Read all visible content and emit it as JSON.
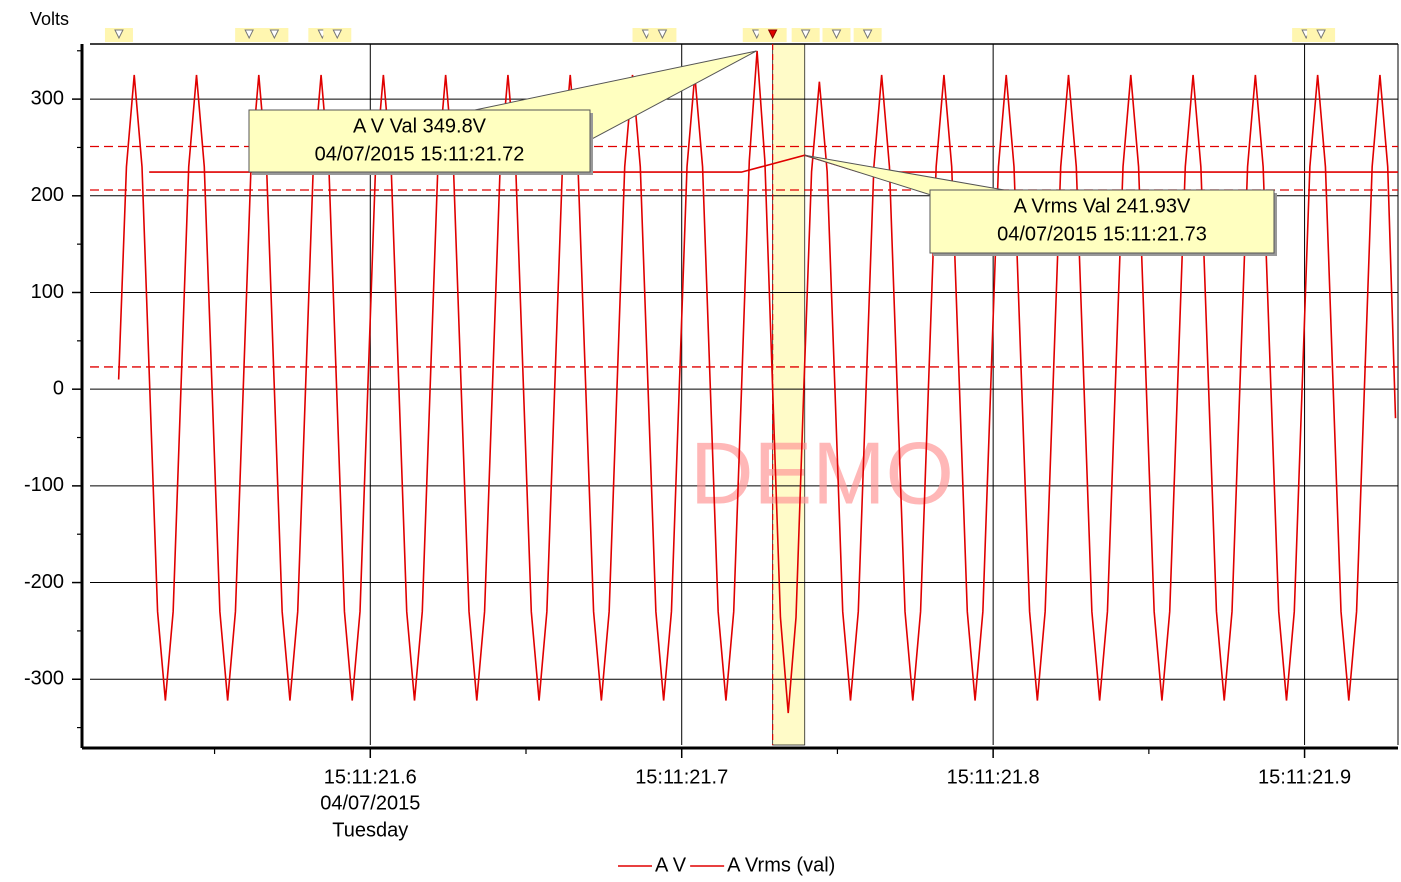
{
  "chart_data": {
    "type": "line",
    "y_axis_label": "Volts",
    "xlim": [
      21.51,
      21.93
    ],
    "ylim": [
      -368,
      357
    ],
    "xticks": [
      {
        "value": 21.6,
        "label": "15:11:21.6",
        "sublabels": [
          "04/07/2015",
          "Tuesday"
        ]
      },
      {
        "value": 21.7,
        "label": "15:11:21.7"
      },
      {
        "value": 21.8,
        "label": "15:11:21.8"
      },
      {
        "value": 21.9,
        "label": "15:11:21.9"
      }
    ],
    "xminorticks": [
      21.55,
      21.65,
      21.75,
      21.85
    ],
    "yticks": [
      -300,
      -200,
      -100,
      0,
      100,
      200,
      300
    ],
    "yminorticks": [
      -350,
      -250,
      -150,
      -50,
      50,
      150,
      250,
      350
    ],
    "grid": true,
    "reference_lines": [
      251,
      206,
      23
    ],
    "reference_color": "#e00000",
    "cursor": 21.7292,
    "highlight": [
      21.7292,
      21.7395
    ],
    "event_markers": [
      21.5193,
      21.5611,
      21.5692,
      21.5846,
      21.5894,
      21.6887,
      21.6938,
      21.7241,
      21.7292,
      21.7398,
      21.7497,
      21.7597,
      21.9005,
      21.9053
    ],
    "active_marker": 8,
    "watermark": "DEMO",
    "series": [
      {
        "name": "A V",
        "color": "#e00000",
        "x": [
          21.5192,
          21.5217,
          21.5242,
          21.5267,
          21.5292,
          21.5317,
          21.5342,
          21.5367,
          21.5392,
          21.5417,
          21.5442,
          21.5467,
          21.5492,
          21.5517,
          21.5542,
          21.5567,
          21.5592,
          21.5617,
          21.5642,
          21.5667,
          21.5692,
          21.5717,
          21.5742,
          21.5767,
          21.5792,
          21.5817,
          21.5842,
          21.5867,
          21.5892,
          21.5917,
          21.5942,
          21.5967,
          21.5992,
          21.6017,
          21.6042,
          21.6067,
          21.6092,
          21.6117,
          21.6142,
          21.6167,
          21.6192,
          21.6217,
          21.6242,
          21.6267,
          21.6292,
          21.6317,
          21.6342,
          21.6367,
          21.6392,
          21.6417,
          21.6442,
          21.6467,
          21.6492,
          21.6517,
          21.6542,
          21.6567,
          21.6592,
          21.6617,
          21.6642,
          21.6667,
          21.6692,
          21.6717,
          21.6742,
          21.6767,
          21.6792,
          21.6817,
          21.6842,
          21.6867,
          21.6892,
          21.6917,
          21.6942,
          21.6967,
          21.6992,
          21.7017,
          21.7042,
          21.7067,
          21.7092,
          21.7117,
          21.7142,
          21.7167,
          21.7192,
          21.7217,
          21.7242,
          21.7267,
          21.7292,
          21.7317,
          21.7342,
          21.7367,
          21.7392,
          21.7417,
          21.7442,
          21.7467,
          21.7492,
          21.7517,
          21.7542,
          21.7567,
          21.7592,
          21.7617,
          21.7642,
          21.7667,
          21.7692,
          21.7717,
          21.7742,
          21.7767,
          21.7792,
          21.7817,
          21.7842,
          21.7867,
          21.7892,
          21.7917,
          21.7942,
          21.7967,
          21.7992,
          21.8017,
          21.8042,
          21.8067,
          21.8092,
          21.8117,
          21.8142,
          21.8167,
          21.8192,
          21.8217,
          21.8242,
          21.8267,
          21.8292,
          21.8317,
          21.8342,
          21.8367,
          21.8392,
          21.8417,
          21.8442,
          21.8467,
          21.8492,
          21.8517,
          21.8542,
          21.8567,
          21.8592,
          21.8617,
          21.8642,
          21.8667,
          21.8692,
          21.8717,
          21.8742,
          21.8767,
          21.8792,
          21.8817,
          21.8842,
          21.8867,
          21.8892,
          21.8917,
          21.8942,
          21.8967,
          21.8992,
          21.9017,
          21.9042,
          21.9067,
          21.9092,
          21.9117,
          21.9142,
          21.9167,
          21.9192,
          21.9217,
          21.9242,
          21.9267,
          21.9292
        ],
        "values": [
          10,
          230,
          325,
          230,
          0,
          -230,
          -322,
          -230,
          0,
          230,
          325,
          230,
          0,
          -230,
          -322,
          -230,
          0,
          230,
          325,
          230,
          0,
          -230,
          -322,
          -230,
          0,
          230,
          325,
          230,
          0,
          -230,
          -322,
          -230,
          0,
          230,
          325,
          230,
          0,
          -230,
          -322,
          -230,
          0,
          230,
          325,
          230,
          0,
          -230,
          -322,
          -230,
          0,
          230,
          325,
          230,
          0,
          -230,
          -322,
          -230,
          0,
          230,
          325,
          230,
          0,
          -230,
          -322,
          -230,
          0,
          230,
          325,
          230,
          0,
          -230,
          -322,
          -230,
          0,
          230,
          325,
          230,
          0,
          -230,
          -322,
          -230,
          0,
          236,
          349.8,
          236,
          0,
          -236,
          -335,
          -236,
          0,
          225,
          318,
          225,
          0,
          -230,
          -322,
          -230,
          0,
          230,
          325,
          230,
          0,
          -230,
          -322,
          -230,
          0,
          230,
          325,
          230,
          0,
          -230,
          -322,
          -230,
          0,
          230,
          325,
          230,
          0,
          -230,
          -322,
          -230,
          0,
          230,
          325,
          230,
          0,
          -230,
          -322,
          -230,
          0,
          230,
          325,
          230,
          0,
          -230,
          -322,
          -230,
          0,
          230,
          325,
          230,
          0,
          -230,
          -322,
          -230,
          0,
          230,
          325,
          230,
          0,
          -230,
          -322,
          -230,
          0,
          230,
          325,
          230,
          0,
          -230,
          -322,
          -230,
          0,
          230,
          325,
          230,
          -30
        ]
      },
      {
        "name": "A Vrms (val)",
        "color": "#e00000",
        "x": [
          21.529,
          21.7192,
          21.7395,
          21.7571,
          21.93
        ],
        "values": [
          224.5,
          224.5,
          241.93,
          224.5,
          224.5
        ]
      }
    ],
    "annotations": [
      {
        "lines": [
          "A V Val 349.8V",
          "04/07/2015 15:11:21.72"
        ],
        "x": 21.724,
        "y": 349.8
      },
      {
        "lines": [
          "A Vrms Val 241.93V",
          "04/07/2015 15:11:21.73"
        ],
        "x": 21.7395,
        "y": 241.93
      }
    ]
  }
}
